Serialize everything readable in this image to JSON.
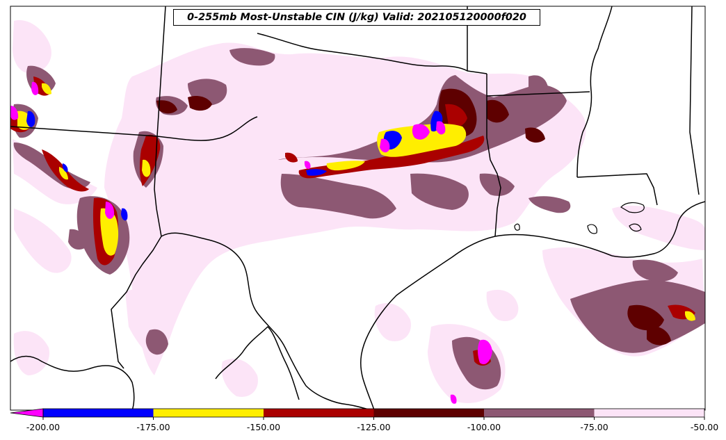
{
  "map": {
    "title": "0-255mb Most-Unstable CIN (J/kg) Valid: 202105120000f020",
    "variable": "Most-Unstable CIN",
    "units": "J/kg",
    "layer": "0-255mb",
    "valid": "202105120000f020"
  },
  "colorbar": {
    "extend": "min",
    "boundaries": [
      -200,
      -175,
      -150,
      -125,
      -100,
      -75,
      -50
    ],
    "tick_labels": [
      "-200.00",
      "-175.00",
      "-150.00",
      "-125.00",
      "-100.00",
      "-75.00",
      "-50.00"
    ],
    "colors": {
      "below_min": "#ff00ff",
      "-200_-175": "#0000ff",
      "-175_-150": "#ffee00",
      "-150_-125": "#aa0000",
      "-125_-100": "#5e0000",
      "-100_-75": "#8d5873",
      "-75_-50": "#fce4f7"
    }
  },
  "colors": {
    "background": "#ffffff",
    "boundary": "#000000"
  }
}
